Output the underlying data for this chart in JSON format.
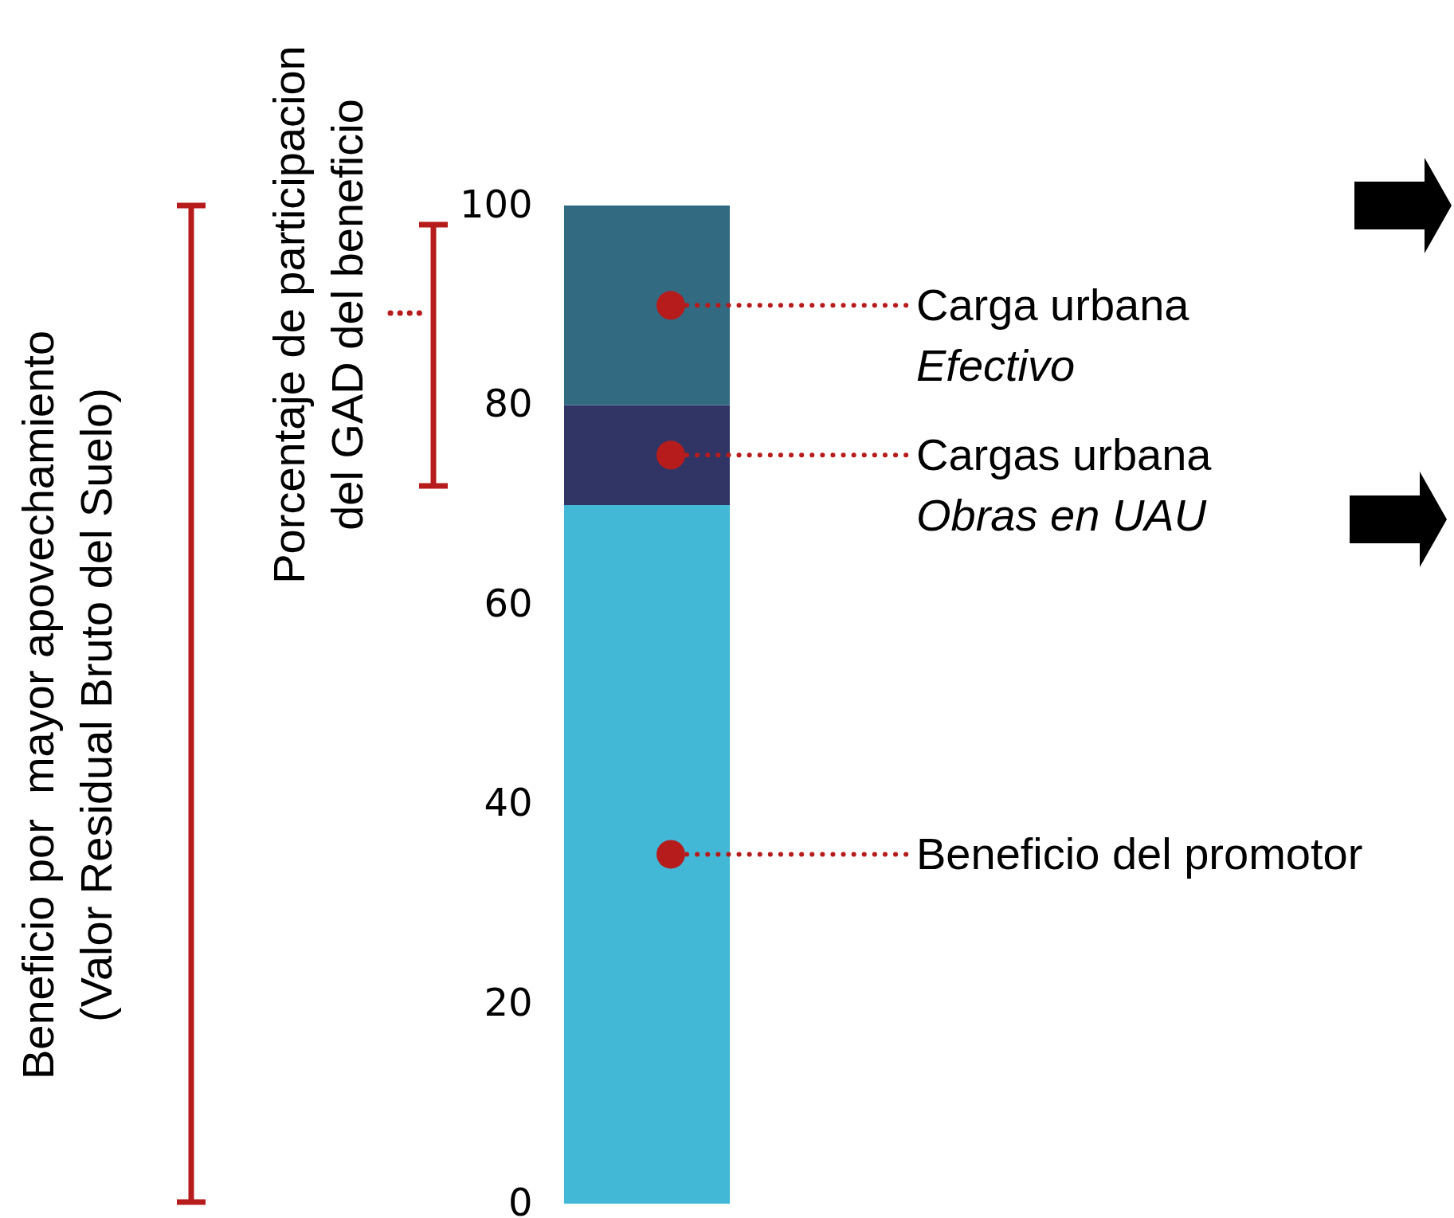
{
  "chart_data": {
    "type": "bar",
    "stacked": true,
    "categories": [
      null
    ],
    "series": [
      {
        "name": "Beneficio del promotor",
        "color": "#42b8d6",
        "values": [
          70
        ]
      },
      {
        "name": "Cargas urbana\nObras en UAU",
        "color": "#303566",
        "values": [
          10
        ]
      },
      {
        "name": "Carga urbana\nEfectivo",
        "color": "#326a82",
        "values": [
          20
        ]
      }
    ],
    "ylim": [
      0,
      100
    ],
    "yticks": [
      0,
      20,
      40,
      60,
      80,
      100
    ],
    "tick_labels": "y",
    "legend": false,
    "annotations": [
      "Beneficio por  mayor apovechamiento\n(Valor Residual Bruto del Suelo)",
      "Porcentaje de participacion\ndel GAD del beneficio"
    ]
  }
}
